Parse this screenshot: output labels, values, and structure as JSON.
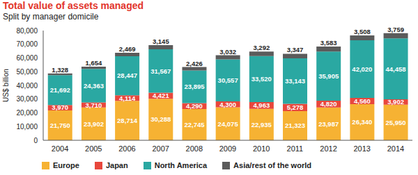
{
  "chart_data": {
    "type": "bar",
    "title": "Total value of assets managed",
    "subtitle": "Split by manager domicile",
    "y_label": "US$ billion",
    "stacked": true,
    "data_labels": true,
    "grid": false,
    "legend": "bottom",
    "categories": [
      "2004",
      "2005",
      "2006",
      "2007",
      "2008",
      "2009",
      "2010",
      "2011",
      "2012",
      "2013",
      "2014"
    ],
    "ylim": [
      0,
      80000
    ],
    "yticks": [
      {
        "value": 0,
        "label": "0"
      },
      {
        "value": 10000,
        "label": "10,000"
      },
      {
        "value": 20000,
        "label": "20,000"
      },
      {
        "value": 30000,
        "label": "30,000"
      },
      {
        "value": 40000,
        "label": "40,000"
      },
      {
        "value": 50000,
        "label": "50,000"
      },
      {
        "value": 60000,
        "label": "60,000"
      },
      {
        "value": 70000,
        "label": "70,000"
      },
      {
        "value": 80000,
        "label": "80,000"
      }
    ],
    "series": [
      {
        "name": "Europe",
        "color": "#f6b233",
        "values": [
          21750,
          23902,
          28714,
          30288,
          22745,
          24075,
          22935,
          21323,
          23987,
          26340,
          25950
        ],
        "value_labels": [
          "21,750",
          "23,902",
          "28,714",
          "30,288",
          "22,745",
          "24,075",
          "22,935",
          "21,323",
          "23,987",
          "26,340",
          "25,950"
        ]
      },
      {
        "name": "Japan",
        "color": "#e8473c",
        "values": [
          3970,
          3710,
          4114,
          4421,
          4290,
          4300,
          4963,
          5278,
          4820,
          4560,
          3902
        ],
        "value_labels": [
          "3,970",
          "3,710",
          "4,114",
          "4,421",
          "4,290",
          "4,300",
          "4,963",
          "5,278",
          "4,820",
          "4,560",
          "3,902"
        ]
      },
      {
        "name": "North America",
        "color": "#2aa8a2",
        "values": [
          21692,
          24363,
          28447,
          31567,
          23895,
          30557,
          33520,
          33143,
          35905,
          42020,
          44458
        ],
        "value_labels": [
          "21,692",
          "24,363",
          "28,447",
          "31,567",
          "23,895",
          "30,557",
          "33,520",
          "33,143",
          "35,905",
          "42,020",
          "44,458"
        ]
      },
      {
        "name": "Asia/rest of the world",
        "color": "#5b5b5b",
        "values": [
          1328,
          1654,
          2469,
          3145,
          2426,
          3032,
          3292,
          3347,
          3583,
          3508,
          3759
        ],
        "value_labels": [
          "1,328",
          "1,654",
          "2,469",
          "3,145",
          "2,426",
          "3,032",
          "3,292",
          "3,347",
          "3,583",
          "3,508",
          "3,759"
        ]
      }
    ]
  }
}
